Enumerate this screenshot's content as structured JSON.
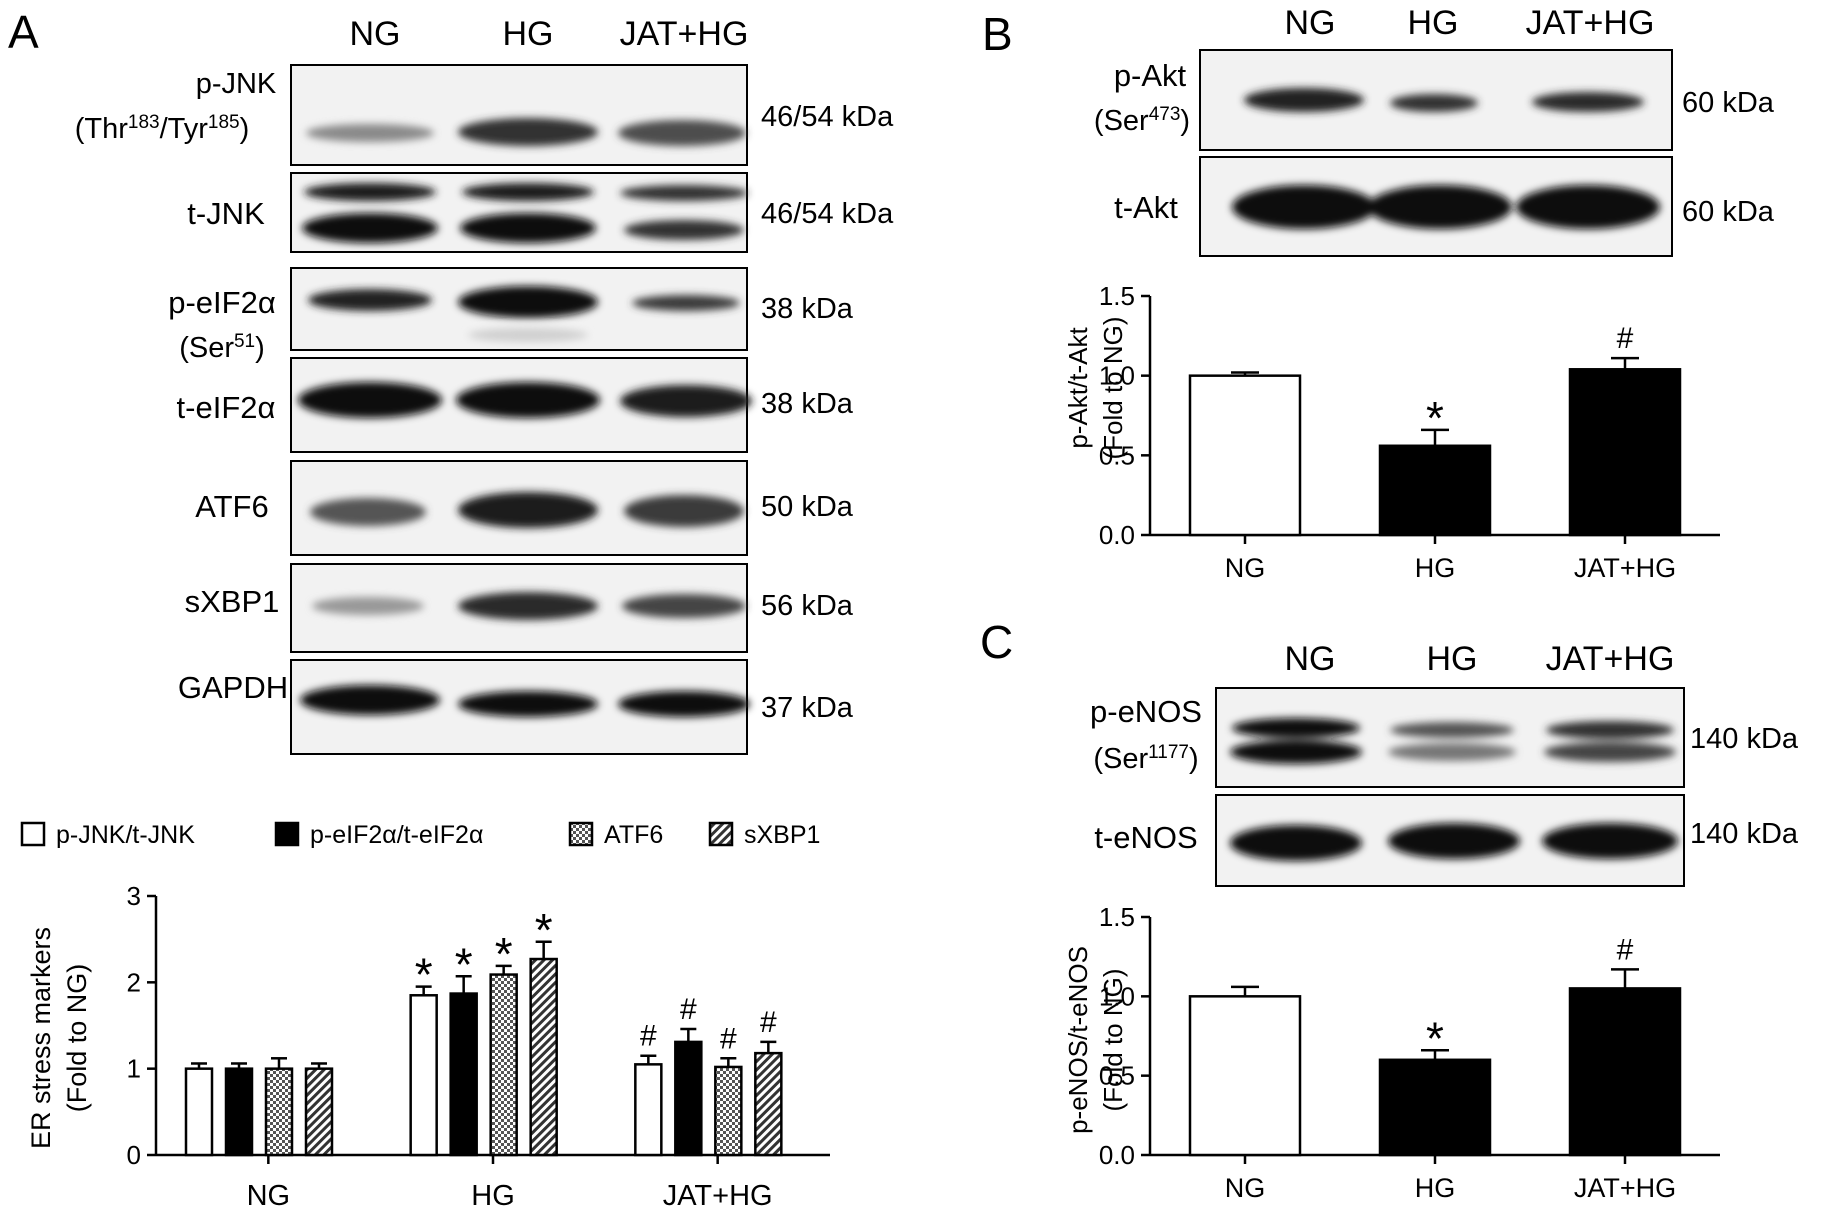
{
  "panels": {
    "A": {
      "letter": "A",
      "lanes": [
        "NG",
        "HG",
        "JAT+HG"
      ],
      "blots": [
        {
          "label": "p-JNK",
          "label2": "(Thr183/Tyr185)",
          "label2_parts": [
            [
              "(Thr",
              ""
            ],
            [
              "183",
              "sup"
            ],
            [
              "/Tyr",
              ""
            ],
            [
              "185",
              "sup"
            ],
            [
              ")",
              ""
            ]
          ],
          "kda": "46/54 kDa"
        },
        {
          "label": "t-JNK",
          "kda": "46/54 kDa"
        },
        {
          "label": "p-eIF2α",
          "label2": "(Ser51)",
          "label2_parts": [
            [
              "(Ser",
              ""
            ],
            [
              "51",
              "sup"
            ],
            [
              ")",
              ""
            ]
          ],
          "kda": "38 kDa"
        },
        {
          "label": "t-eIF2α",
          "kda": "38 kDa"
        },
        {
          "label": "ATF6",
          "kda": "50 kDa"
        },
        {
          "label": "sXBP1",
          "kda": "56 kDa"
        },
        {
          "label": "GAPDH",
          "kda": "37 kDa"
        }
      ]
    },
    "B": {
      "letter": "B",
      "lanes": [
        "NG",
        "HG",
        "JAT+HG"
      ],
      "blots": [
        {
          "label": "p-Akt",
          "label2": "(Ser473)",
          "label2_parts": [
            [
              "(Ser",
              ""
            ],
            [
              "473",
              "sup"
            ],
            [
              ")",
              ""
            ]
          ],
          "kda": "60 kDa"
        },
        {
          "label": "t-Akt",
          "kda": "60 kDa"
        }
      ]
    },
    "C": {
      "letter": "C",
      "lanes": [
        "NG",
        "HG",
        "JAT+HG"
      ],
      "blots": [
        {
          "label": "p-eNOS",
          "label2": "(Ser1177)",
          "label2_parts": [
            [
              "(Ser",
              ""
            ],
            [
              "1177",
              "sup"
            ],
            [
              ")",
              ""
            ]
          ],
          "kda": "140 kDa"
        },
        {
          "label": "t-eNOS",
          "kda": "140 kDa"
        }
      ]
    }
  },
  "colors": {
    "black": "#000000",
    "white": "#ffffff",
    "blot_bg": "#f0f0f0",
    "band": "#1a1a1a"
  },
  "chart_data": [
    {
      "panel": "A",
      "type": "bar",
      "categories": [
        "NG",
        "HG",
        "JAT+HG"
      ],
      "ylabel": "ER stress markers",
      "ylabel2": "(Fold to NG)",
      "ylim": [
        0,
        3
      ],
      "yticks": [
        "0",
        "1",
        "2",
        "3"
      ],
      "legend_position": "top",
      "series": [
        {
          "name": "p-JNK/t-JNK",
          "fill": "white",
          "values": [
            1.0,
            1.85,
            1.05
          ],
          "errors": [
            0.06,
            0.1,
            0.1
          ],
          "marks": [
            "",
            "*",
            "#"
          ]
        },
        {
          "name": "p-eIF2α/t-eIF2α",
          "fill": "black",
          "values": [
            1.0,
            1.87,
            1.31
          ],
          "errors": [
            0.06,
            0.2,
            0.15
          ],
          "marks": [
            "",
            "*",
            "#"
          ]
        },
        {
          "name": "ATF6",
          "fill": "checker",
          "values": [
            1.0,
            2.09,
            1.02
          ],
          "errors": [
            0.12,
            0.1,
            0.1
          ],
          "marks": [
            "",
            "*",
            "#"
          ]
        },
        {
          "name": "sXBP1",
          "fill": "hatch",
          "values": [
            1.0,
            2.27,
            1.18
          ],
          "errors": [
            0.06,
            0.2,
            0.13
          ],
          "marks": [
            "",
            "*",
            "#"
          ]
        }
      ]
    },
    {
      "panel": "B",
      "type": "bar",
      "categories": [
        "NG",
        "HG",
        "JAT+HG"
      ],
      "ylabel": "p-Akt/t-Akt",
      "ylabel2": "(Fold to NG)",
      "ylim": [
        0,
        1.5
      ],
      "yticks": [
        "0.0",
        "0.5",
        "1.0",
        "1.5"
      ],
      "series": [
        {
          "fills": [
            "white",
            "black",
            "black"
          ],
          "values": [
            1.0,
            0.56,
            1.04
          ],
          "errors": [
            0.02,
            0.1,
            0.07
          ],
          "marks": [
            "",
            "*",
            "#"
          ]
        }
      ]
    },
    {
      "panel": "C",
      "type": "bar",
      "categories": [
        "NG",
        "HG",
        "JAT+HG"
      ],
      "ylabel": "p-eNOS/t-eNOS",
      "ylabel2": "(Fold to NG)",
      "ylim": [
        0,
        1.5
      ],
      "yticks": [
        "0.0",
        "0.5",
        "1.0",
        "1.5"
      ],
      "series": [
        {
          "fills": [
            "white",
            "black",
            "black"
          ],
          "values": [
            1.0,
            0.6,
            1.05
          ],
          "errors": [
            0.06,
            0.06,
            0.12
          ],
          "marks": [
            "",
            "*",
            "#"
          ]
        }
      ]
    }
  ]
}
